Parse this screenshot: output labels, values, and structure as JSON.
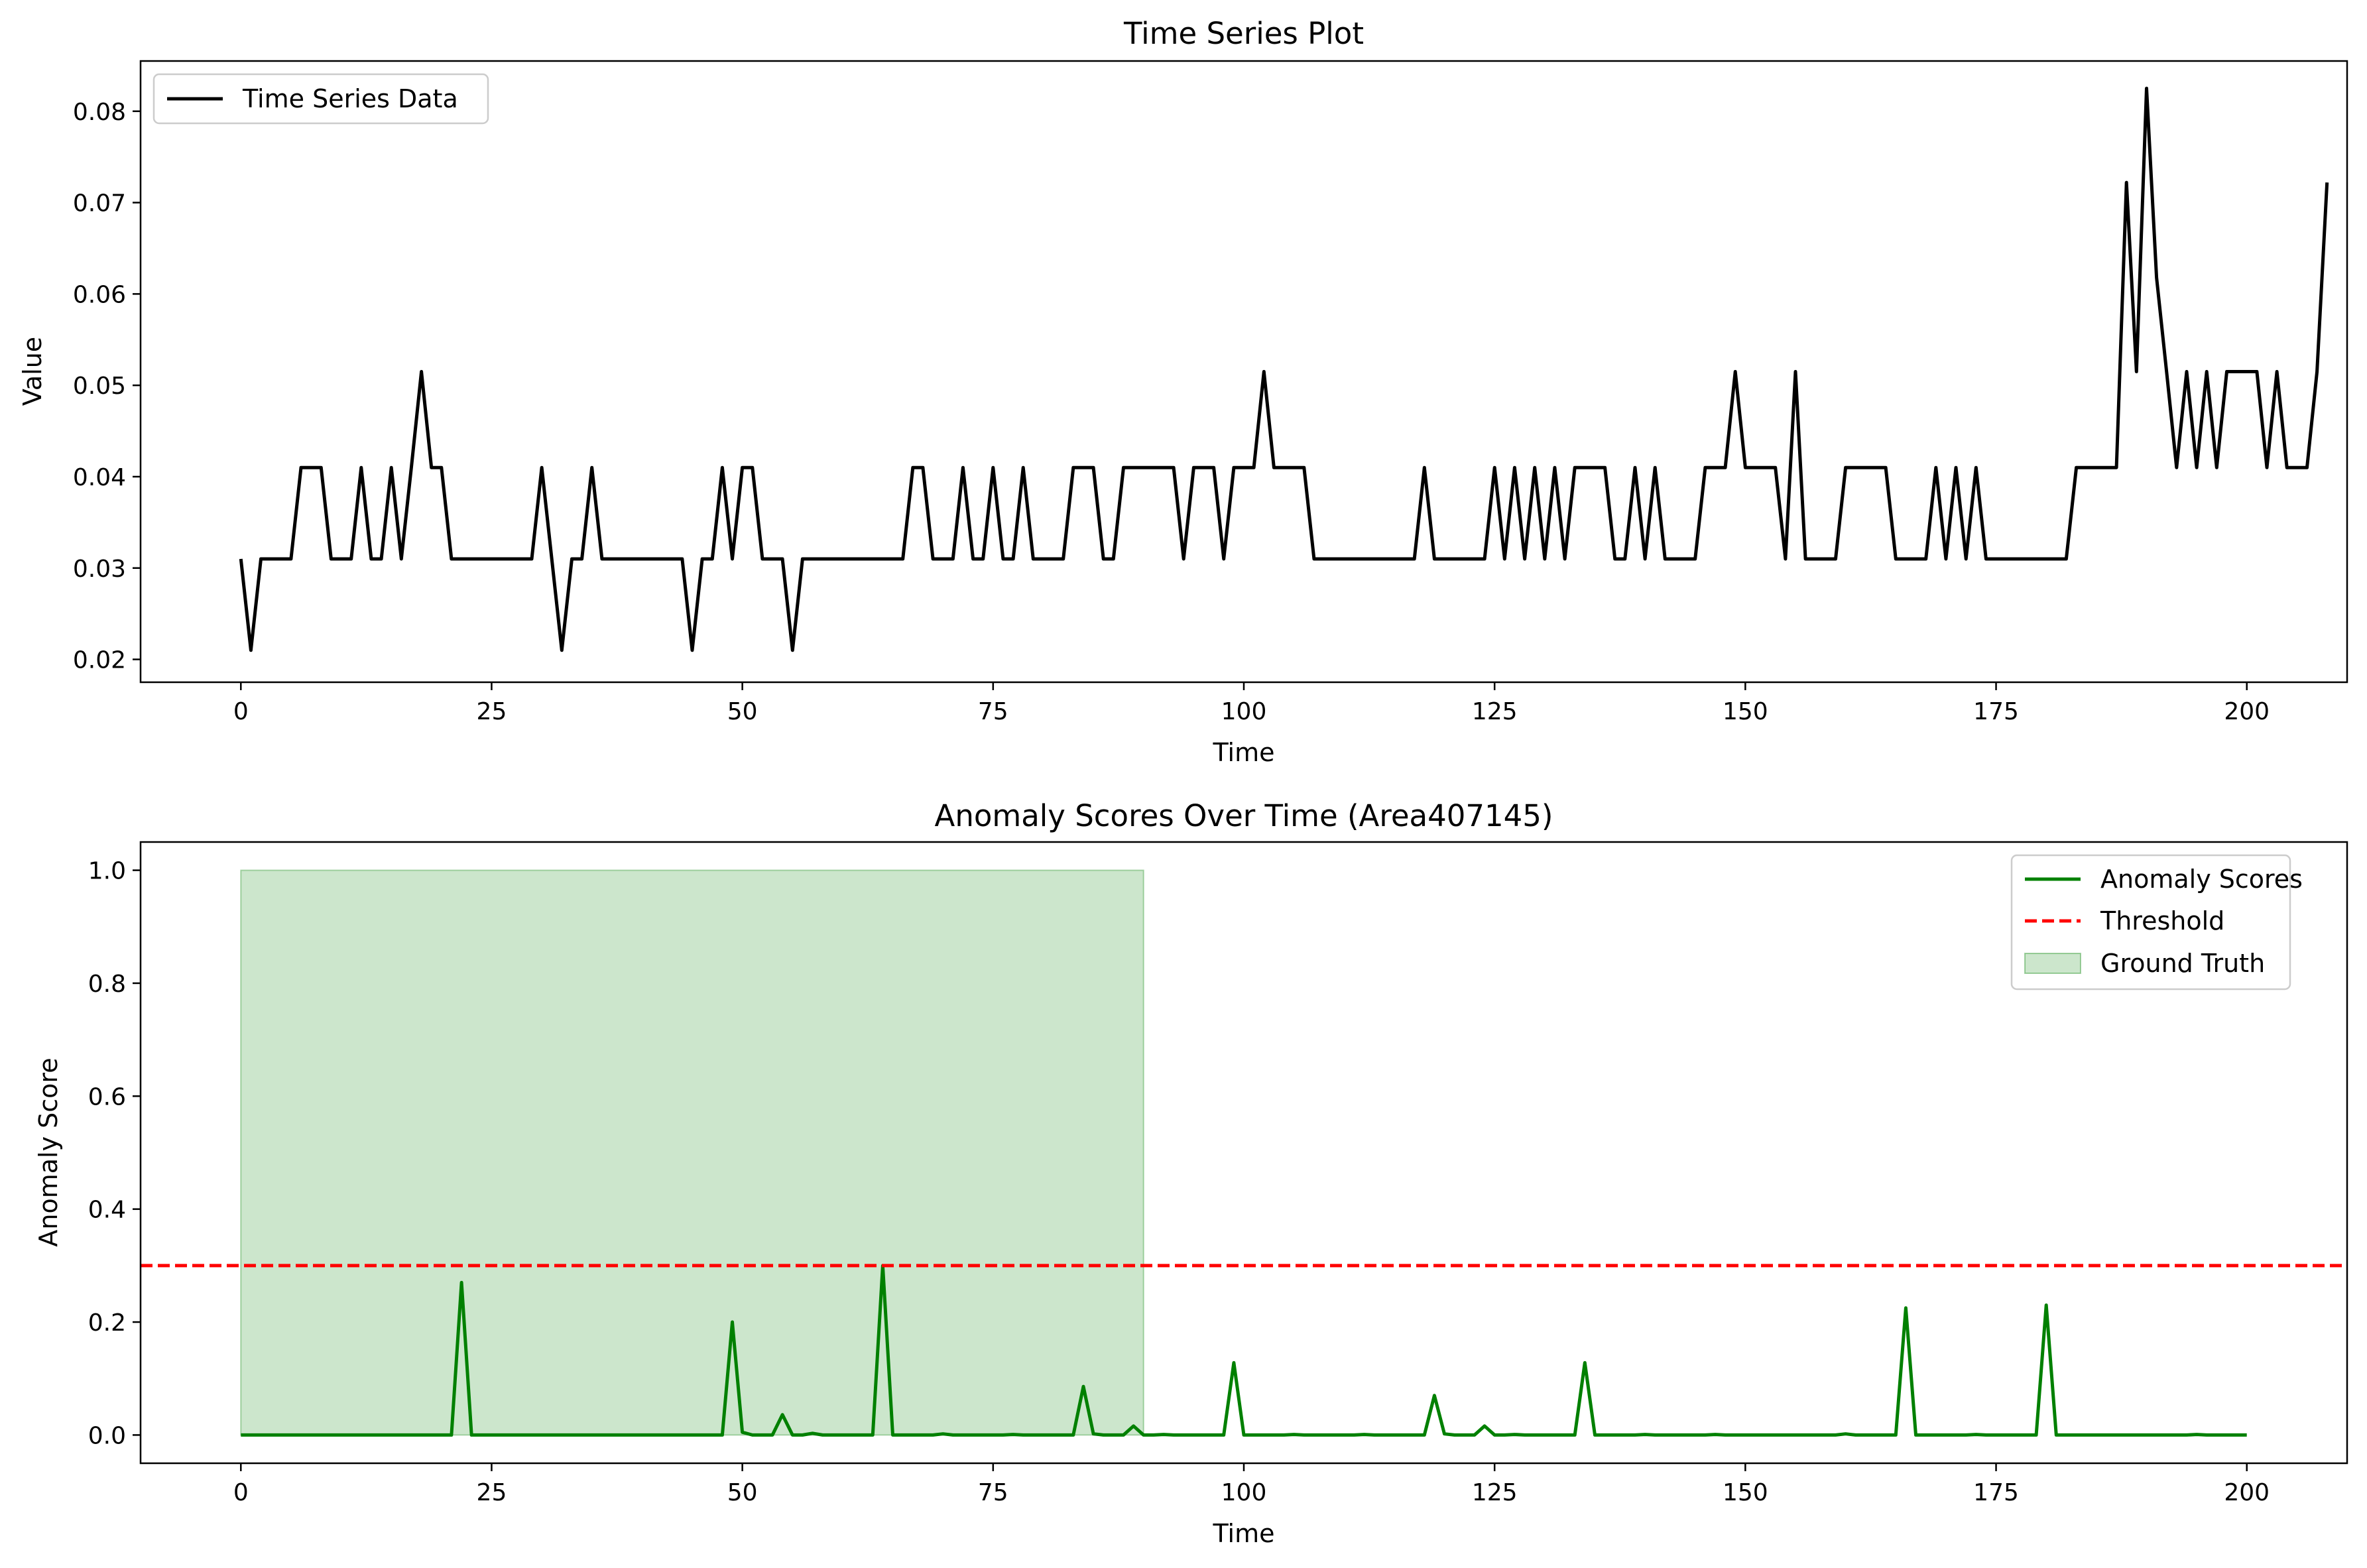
{
  "chart_data": [
    {
      "type": "line",
      "title": "Time Series Plot",
      "xlabel": "Time",
      "ylabel": "Value",
      "xlim": [
        -10,
        210
      ],
      "ylim": [
        0.0175,
        0.0855
      ],
      "xticks": [
        0,
        25,
        50,
        75,
        100,
        125,
        150,
        175,
        200
      ],
      "yticks": [
        0.02,
        0.03,
        0.04,
        0.05,
        0.06,
        0.07,
        0.08
      ],
      "ytick_decimals": 2,
      "legend": {
        "placement": "top-left",
        "entries": [
          {
            "label": "Time Series Data",
            "color": "#000000",
            "style": "line"
          }
        ]
      },
      "series": [
        {
          "name": "Time Series Data",
          "color": "#000000",
          "values": [
            0.031,
            0.021,
            0.031,
            0.031,
            0.031,
            0.031,
            0.041,
            0.041,
            0.041,
            0.031,
            0.031,
            0.031,
            0.041,
            0.031,
            0.031,
            0.041,
            0.031,
            0.041,
            0.0515,
            0.041,
            0.041,
            0.031,
            0.031,
            0.031,
            0.031,
            0.031,
            0.031,
            0.031,
            0.031,
            0.031,
            0.041,
            0.031,
            0.021,
            0.031,
            0.031,
            0.041,
            0.031,
            0.031,
            0.031,
            0.031,
            0.031,
            0.031,
            0.031,
            0.031,
            0.031,
            0.021,
            0.031,
            0.031,
            0.041,
            0.031,
            0.041,
            0.041,
            0.031,
            0.031,
            0.031,
            0.021,
            0.031,
            0.031,
            0.031,
            0.031,
            0.031,
            0.031,
            0.031,
            0.031,
            0.031,
            0.031,
            0.031,
            0.041,
            0.041,
            0.031,
            0.031,
            0.031,
            0.041,
            0.031,
            0.031,
            0.041,
            0.031,
            0.031,
            0.041,
            0.031,
            0.031,
            0.031,
            0.031,
            0.041,
            0.041,
            0.041,
            0.031,
            0.031,
            0.041,
            0.041,
            0.041,
            0.041,
            0.041,
            0.041,
            0.031,
            0.041,
            0.041,
            0.041,
            0.031,
            0.041,
            0.041,
            0.041,
            0.0515,
            0.041,
            0.041,
            0.041,
            0.041,
            0.031,
            0.031,
            0.031,
            0.031,
            0.031,
            0.031,
            0.031,
            0.031,
            0.031,
            0.031,
            0.031,
            0.041,
            0.031,
            0.031,
            0.031,
            0.031,
            0.031,
            0.031,
            0.041,
            0.031,
            0.041,
            0.031,
            0.041,
            0.031,
            0.041,
            0.031,
            0.041,
            0.041,
            0.041,
            0.041,
            0.031,
            0.031,
            0.041,
            0.031,
            0.041,
            0.031,
            0.031,
            0.031,
            0.031,
            0.041,
            0.041,
            0.041,
            0.0515,
            0.041,
            0.041,
            0.041,
            0.041,
            0.031,
            0.0515,
            0.031,
            0.031,
            0.031,
            0.031,
            0.041,
            0.041,
            0.041,
            0.041,
            0.041,
            0.031,
            0.031,
            0.031,
            0.031,
            0.041,
            0.031,
            0.041,
            0.031,
            0.041,
            0.031,
            0.031,
            0.031,
            0.031,
            0.031,
            0.031,
            0.031,
            0.031,
            0.031,
            0.041,
            0.041,
            0.041,
            0.041,
            0.041,
            0.0722,
            0.0515,
            0.0825,
            0.0618,
            0.0515,
            0.041,
            0.0515,
            0.041,
            0.0515,
            0.041,
            0.0515,
            0.0515,
            0.0515,
            0.0515,
            0.041,
            0.0515,
            0.041,
            0.041,
            0.041,
            0.0515,
            0.0722
          ]
        }
      ]
    },
    {
      "type": "line",
      "title": "Anomaly Scores Over Time (Area407145)",
      "xlabel": "Time",
      "ylabel": "Anomaly Score",
      "xlim": [
        -10,
        210
      ],
      "ylim": [
        -0.05,
        1.05
      ],
      "xticks": [
        0,
        25,
        50,
        75,
        100,
        125,
        150,
        175,
        200
      ],
      "yticks": [
        0.0,
        0.2,
        0.4,
        0.6,
        0.8,
        1.0
      ],
      "ytick_decimals": 1,
      "legend": {
        "placement": "top-right",
        "entries": [
          {
            "label": "Anomaly Scores",
            "color": "#008000",
            "style": "line"
          },
          {
            "label": "Threshold",
            "color": "#ff0000",
            "style": "dashed"
          },
          {
            "label": "Ground Truth",
            "color": "#008000",
            "style": "patch"
          }
        ]
      },
      "threshold": {
        "name": "Threshold",
        "value": 0.3,
        "color": "#ff0000"
      },
      "ground_truth": {
        "name": "Ground Truth",
        "x_start": 0,
        "x_end": 90,
        "y_start": 0,
        "y_end": 1.0,
        "color": "#008000"
      },
      "series": [
        {
          "name": "Anomaly Scores",
          "color": "#008000",
          "values": [
            0,
            0,
            0,
            0,
            0,
            0,
            0,
            0,
            0,
            0,
            0,
            0,
            0,
            0,
            0,
            0,
            0,
            0,
            0,
            0,
            0,
            0,
            0.27,
            0,
            0,
            0,
            0,
            0,
            0,
            0,
            0,
            0,
            0,
            0,
            0,
            0,
            0,
            0,
            0,
            0,
            0,
            0,
            0,
            0,
            0,
            0,
            0,
            0,
            0,
            0.2,
            0.005,
            0,
            0,
            0,
            0.036,
            0,
            0,
            0.003,
            0,
            0,
            0,
            0,
            0,
            0,
            0.3,
            0,
            0,
            0,
            0,
            0,
            0.002,
            0,
            0,
            0,
            0,
            0,
            0,
            0.001,
            0,
            0,
            0,
            0,
            0,
            0,
            0.086,
            0.002,
            0,
            0,
            0,
            0.016,
            0,
            0,
            0.001,
            0,
            0,
            0,
            0,
            0,
            0,
            0.128,
            0,
            0,
            0,
            0,
            0,
            0.001,
            0,
            0,
            0,
            0,
            0,
            0,
            0.001,
            0,
            0,
            0,
            0,
            0,
            0,
            0.07,
            0.002,
            0,
            0,
            0,
            0.016,
            0,
            0,
            0.001,
            0,
            0,
            0,
            0,
            0,
            0,
            0.128,
            0,
            0,
            0,
            0,
            0,
            0.001,
            0,
            0,
            0,
            0,
            0,
            0,
            0.001,
            0,
            0,
            0,
            0,
            0,
            0,
            0,
            0,
            0,
            0,
            0,
            0,
            0.002,
            0,
            0,
            0,
            0,
            0,
            0.225,
            0,
            0,
            0,
            0,
            0,
            0,
            0.001,
            0,
            0,
            0,
            0,
            0,
            0,
            0.23,
            0,
            0,
            0,
            0,
            0,
            0,
            0,
            0,
            0,
            0,
            0,
            0,
            0,
            0,
            0.001,
            0,
            0,
            0,
            0,
            0
          ]
        }
      ]
    }
  ]
}
